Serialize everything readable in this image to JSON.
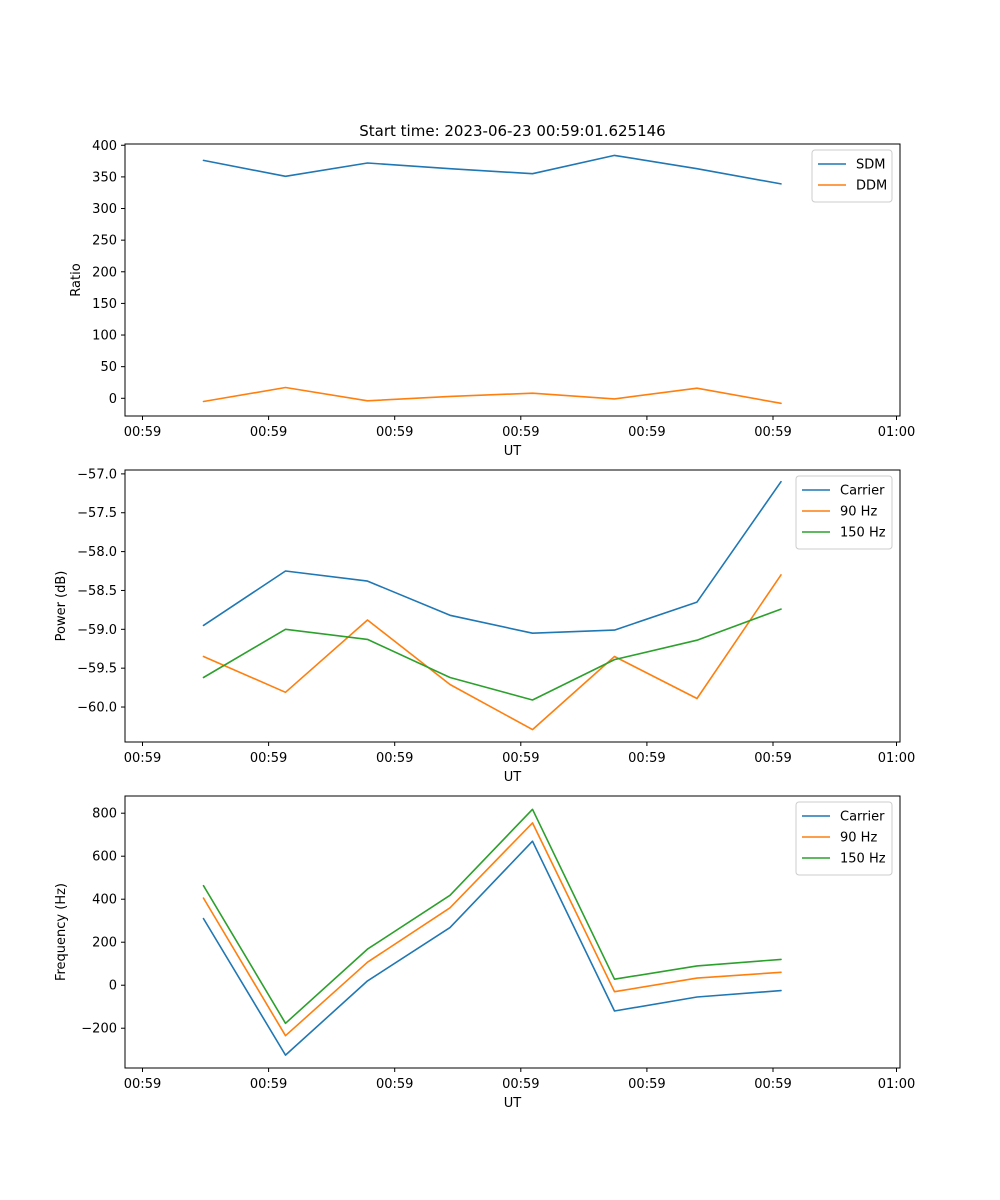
{
  "title": "Start time: 2023-06-23 00:59:01.625146",
  "colors": {
    "c0": "#1f77b4",
    "c1": "#ff7f0e",
    "c2": "#2ca02c"
  },
  "chart_data": [
    {
      "type": "line",
      "xlabel": "UT",
      "ylabel": "Ratio",
      "xticks": [
        "00:59",
        "00:59",
        "00:59",
        "00:59",
        "00:59",
        "00:59",
        "01:00"
      ],
      "ylim": [
        -28,
        402
      ],
      "yticks": [
        0,
        50,
        100,
        150,
        200,
        250,
        300,
        350,
        400
      ],
      "x": [
        1,
        2,
        3,
        4,
        5,
        6,
        7,
        8
      ],
      "legend_position": "upper right",
      "series": [
        {
          "name": "SDM",
          "color": "#1f77b4",
          "values": [
            376,
            351,
            372,
            363,
            355,
            384,
            363,
            339
          ]
        },
        {
          "name": "DDM",
          "color": "#ff7f0e",
          "values": [
            -5,
            17,
            -4,
            3,
            8,
            -1,
            16,
            -8
          ]
        }
      ]
    },
    {
      "type": "line",
      "xlabel": "UT",
      "ylabel": "Power (dB)",
      "xticks": [
        "00:59",
        "00:59",
        "00:59",
        "00:59",
        "00:59",
        "00:59",
        "01:00"
      ],
      "ylim": [
        -60.45,
        -56.95
      ],
      "yticks": [
        -60.0,
        -59.5,
        -59.0,
        -58.5,
        -58.0,
        -57.5,
        -57.0
      ],
      "x": [
        1,
        2,
        3,
        4,
        5,
        6,
        7,
        8
      ],
      "legend_position": "upper right",
      "series": [
        {
          "name": "Carrier",
          "color": "#1f77b4",
          "values": [
            -58.95,
            -58.25,
            -58.38,
            -58.82,
            -59.05,
            -59.01,
            -58.65,
            -57.1
          ]
        },
        {
          "name": "90 Hz",
          "color": "#ff7f0e",
          "values": [
            -59.35,
            -59.81,
            -58.88,
            -59.71,
            -60.29,
            -59.35,
            -59.89,
            -58.3
          ]
        },
        {
          "name": "150 Hz",
          "color": "#2ca02c",
          "values": [
            -59.62,
            -59.0,
            -59.13,
            -59.62,
            -59.91,
            -59.39,
            -59.14,
            -58.74
          ]
        }
      ]
    },
    {
      "type": "line",
      "xlabel": "UT",
      "ylabel": "Frequency (Hz)",
      "xticks": [
        "00:59",
        "00:59",
        "00:59",
        "00:59",
        "00:59",
        "00:59",
        "01:00"
      ],
      "ylim": [
        -385,
        880
      ],
      "yticks": [
        -200,
        0,
        200,
        400,
        600,
        800
      ],
      "x": [
        1,
        2,
        3,
        4,
        5,
        6,
        7,
        8
      ],
      "legend_position": "upper right",
      "series": [
        {
          "name": "Carrier",
          "color": "#1f77b4",
          "values": [
            310,
            -325,
            20,
            268,
            670,
            -120,
            -55,
            -25
          ]
        },
        {
          "name": "90 Hz",
          "color": "#ff7f0e",
          "values": [
            405,
            -235,
            107,
            360,
            755,
            -30,
            33,
            60
          ]
        },
        {
          "name": "150 Hz",
          "color": "#2ca02c",
          "values": [
            463,
            -177,
            168,
            418,
            818,
            28,
            90,
            120
          ]
        }
      ]
    }
  ]
}
